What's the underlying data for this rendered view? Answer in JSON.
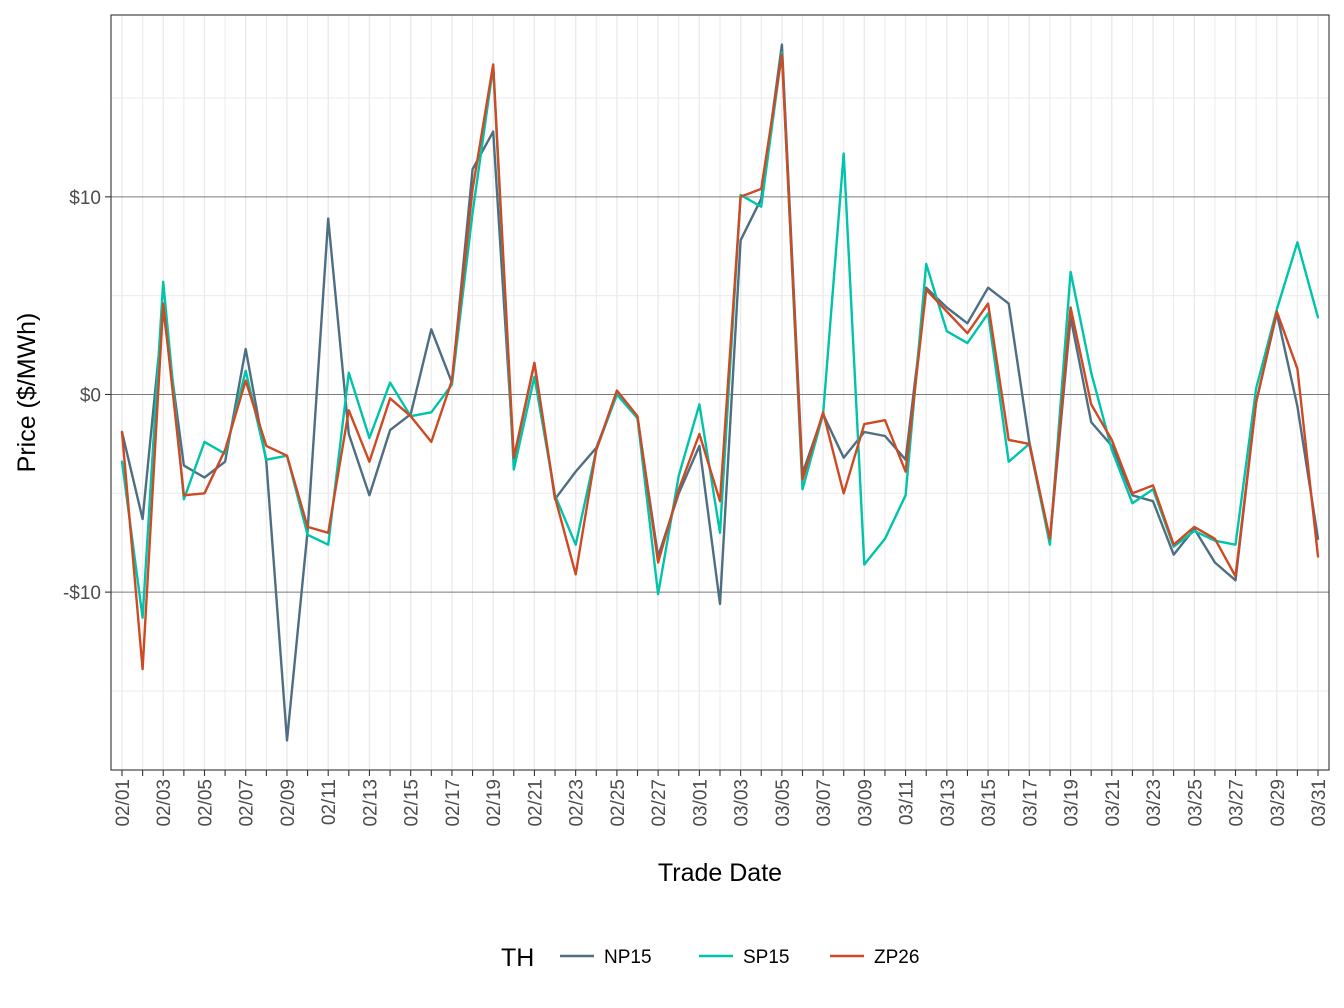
{
  "chart_data": {
    "type": "line",
    "xlabel": "Trade Date",
    "ylabel": "Price ($/MWh)",
    "x": [
      "02/01",
      "02/02",
      "02/03",
      "02/04",
      "02/05",
      "02/06",
      "02/07",
      "02/08",
      "02/09",
      "02/10",
      "02/11",
      "02/12",
      "02/13",
      "02/14",
      "02/15",
      "02/16",
      "02/17",
      "02/18",
      "02/19",
      "02/20",
      "02/21",
      "02/22",
      "02/23",
      "02/24",
      "02/25",
      "02/26",
      "02/27",
      "02/28",
      "03/01",
      "03/02",
      "03/03",
      "03/04",
      "03/05",
      "03/06",
      "03/07",
      "03/08",
      "03/09",
      "03/10",
      "03/11",
      "03/12",
      "03/13",
      "03/14",
      "03/15",
      "03/16",
      "03/17",
      "03/18",
      "03/19",
      "03/20",
      "03/21",
      "03/22",
      "03/23",
      "03/24",
      "03/25",
      "03/26",
      "03/27",
      "03/28",
      "03/29",
      "03/30",
      "03/31"
    ],
    "x_tick_labels": [
      "02/01",
      "02/03",
      "02/05",
      "02/07",
      "02/09",
      "02/11",
      "02/13",
      "02/15",
      "02/17",
      "02/19",
      "02/21",
      "02/23",
      "02/25",
      "02/27",
      "03/01",
      "03/03",
      "03/05",
      "03/07",
      "03/09",
      "03/11",
      "03/13",
      "03/15",
      "03/17",
      "03/19",
      "03/21",
      "03/23",
      "03/25",
      "03/27",
      "03/29",
      "03/31"
    ],
    "y_ticks": [
      -10,
      0,
      10
    ],
    "y_tick_labels": [
      "-$10",
      "$0",
      "$10"
    ],
    "ylim": [
      -19,
      19.2
    ],
    "grid": true,
    "legend": {
      "title": "TH",
      "position": "bottom"
    },
    "series": [
      {
        "name": "NP15",
        "color": "#4e6e82",
        "values": [
          -1.9,
          -6.3,
          4.3,
          -3.6,
          -4.2,
          -3.4,
          2.3,
          -3.4,
          -17.5,
          -6.9,
          8.9,
          -2.0,
          -5.1,
          -1.8,
          -1.0,
          3.3,
          0.6,
          11.4,
          13.3,
          -3.3,
          1.6,
          -5.3,
          -3.9,
          -2.7,
          0.0,
          -1.2,
          -8.2,
          -5.0,
          -2.6,
          -10.6,
          7.8,
          9.9,
          17.7,
          -4.0,
          -1.0,
          -3.2,
          -1.9,
          -2.1,
          -3.3,
          5.4,
          4.4,
          3.6,
          5.4,
          4.6,
          -2.4,
          -7.4,
          3.9,
          -1.4,
          -2.6,
          -5.1,
          -5.4,
          -8.1,
          -6.8,
          -8.5,
          -9.4,
          -0.4,
          4.1,
          -0.6,
          -7.3
        ]
      },
      {
        "name": "SP15",
        "color": "#00c4aa",
        "values": [
          -3.4,
          -11.3,
          5.7,
          -5.3,
          -2.4,
          -3.0,
          1.2,
          -3.3,
          -3.1,
          -7.1,
          -7.6,
          1.1,
          -2.2,
          0.6,
          -1.1,
          -0.9,
          0.5,
          9.2,
          16.6,
          -3.8,
          0.9,
          -5.1,
          -7.6,
          -2.8,
          0.0,
          -1.2,
          -10.1,
          -4.1,
          -0.5,
          -7.0,
          10.1,
          9.5,
          17.3,
          -4.8,
          -1.0,
          12.2,
          -8.6,
          -7.3,
          -5.1,
          6.6,
          3.2,
          2.6,
          4.1,
          -3.4,
          -2.5,
          -7.6,
          6.2,
          1.1,
          -2.8,
          -5.5,
          -4.8,
          -7.7,
          -6.9,
          -7.4,
          -7.6,
          0.3,
          4.3,
          7.7,
          3.9
        ]
      },
      {
        "name": "ZP26",
        "color": "#cd4a24",
        "values": [
          -1.9,
          -13.9,
          4.6,
          -5.1,
          -5.0,
          -2.8,
          0.7,
          -2.6,
          -3.1,
          -6.7,
          -7.0,
          -0.8,
          -3.4,
          -0.2,
          -1.1,
          -2.4,
          0.7,
          10.4,
          16.7,
          -3.2,
          1.6,
          -5.2,
          -9.1,
          -2.8,
          0.2,
          -1.1,
          -8.5,
          -4.8,
          -2.0,
          -5.4,
          10.0,
          10.4,
          17.2,
          -4.3,
          -0.9,
          -5.0,
          -1.5,
          -1.3,
          -3.9,
          5.3,
          4.2,
          3.1,
          4.6,
          -2.3,
          -2.5,
          -7.3,
          4.4,
          -0.5,
          -2.3,
          -5.0,
          -4.6,
          -7.6,
          -6.7,
          -7.3,
          -9.2,
          -0.4,
          4.2,
          1.3,
          -8.2
        ]
      }
    ]
  }
}
